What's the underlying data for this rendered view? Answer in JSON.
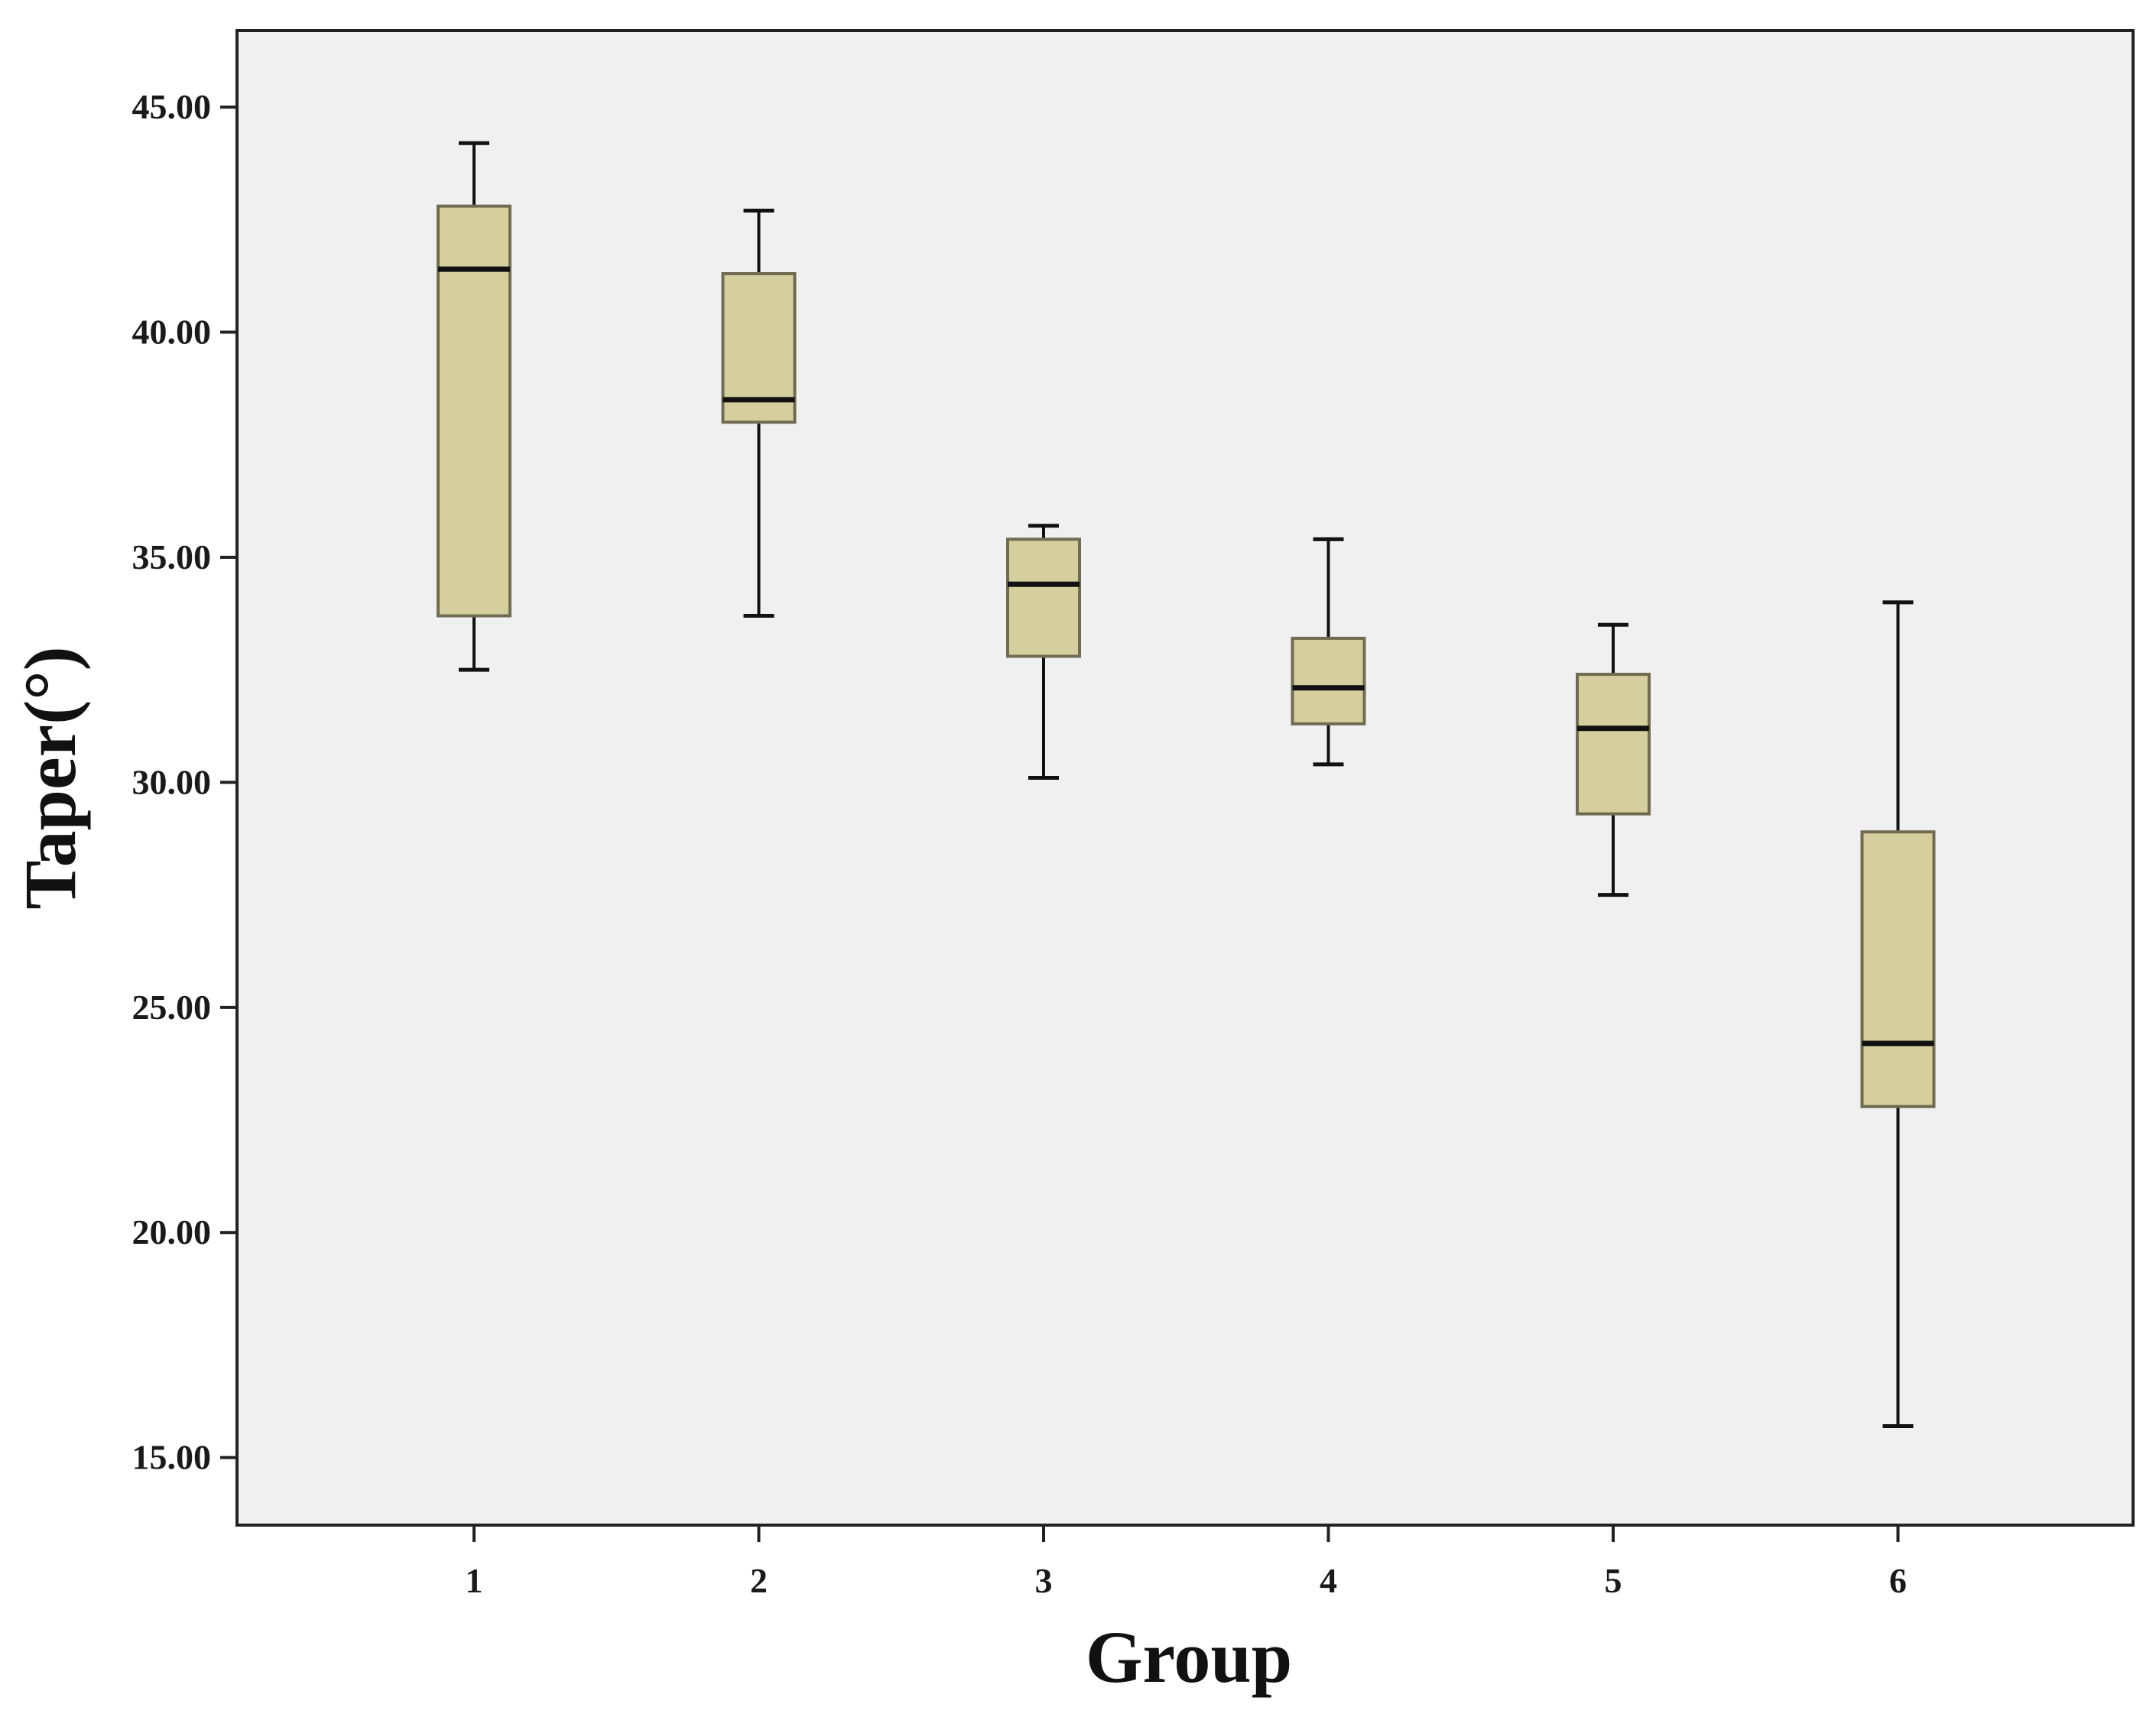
{
  "chart_data": {
    "type": "boxplot",
    "xlabel": "Group",
    "ylabel": "Taper(°)",
    "ylim": [
      13.5,
      46.7
    ],
    "y_ticks": [
      "15.00",
      "20.00",
      "25.00",
      "30.00",
      "35.00",
      "40.00",
      "45.00"
    ],
    "categories": [
      "1",
      "2",
      "3",
      "4",
      "5",
      "6"
    ],
    "grid": false,
    "boxes": [
      {
        "group": "1",
        "min": 32.5,
        "q1": 33.7,
        "median": 41.4,
        "q3": 42.8,
        "max": 44.2
      },
      {
        "group": "2",
        "min": 33.7,
        "q1": 38.0,
        "median": 38.5,
        "q3": 41.3,
        "max": 42.7
      },
      {
        "group": "3",
        "min": 30.1,
        "q1": 32.8,
        "median": 34.4,
        "q3": 35.4,
        "max": 35.7
      },
      {
        "group": "4",
        "min": 30.4,
        "q1": 31.3,
        "median": 32.1,
        "q3": 33.2,
        "max": 35.4
      },
      {
        "group": "5",
        "min": 27.5,
        "q1": 29.3,
        "median": 31.2,
        "q3": 32.4,
        "max": 33.5
      },
      {
        "group": "6",
        "min": 15.7,
        "q1": 22.8,
        "median": 24.2,
        "q3": 28.9,
        "max": 34.0
      }
    ],
    "colors": {
      "box_fill": "#d4cf9d",
      "box_stroke": "#6f6c52",
      "plot_bg": "#f0f0f0",
      "line": "#111111"
    }
  }
}
